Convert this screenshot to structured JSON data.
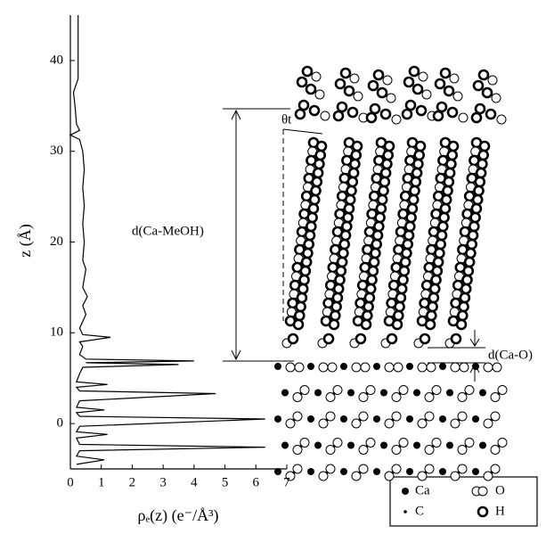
{
  "chart_data": {
    "type": "line",
    "x_label": "ρₑ(z) (e⁻/Å³)",
    "y_label": "z (Å)",
    "xlim": [
      0,
      7
    ],
    "xticks": [
      0,
      1,
      2,
      3,
      4,
      5,
      6,
      7
    ],
    "ylim": [
      -5,
      45
    ],
    "yticks": [
      0,
      10,
      20,
      30,
      40
    ],
    "color": "#000000",
    "z": [
      -4.5,
      -4,
      -3.6,
      -3,
      -2.6,
      -2.3,
      -1.6,
      -1.2,
      -0.9,
      -0.3,
      0.5,
      0.8,
      1.2,
      1.5,
      1.8,
      2.5,
      3.3,
      3.6,
      4.0,
      4.3,
      4.6,
      5.5,
      6.2,
      6.5,
      6.7,
      6.9,
      7.1,
      7.6,
      8.5,
      9.0,
      9.5,
      9.8,
      10.5,
      12,
      13,
      14,
      15,
      16,
      17,
      18,
      20,
      22,
      24,
      26,
      28,
      30,
      31.3,
      31.8,
      32.3,
      33,
      35,
      36.5,
      38,
      40,
      42,
      45
    ],
    "values": [
      0.2,
      1.1,
      0.2,
      0.3,
      6.3,
      0.3,
      0.2,
      1.2,
      0.2,
      0.3,
      6.3,
      0.3,
      0.2,
      1.1,
      0.2,
      0.3,
      4.7,
      0.3,
      0.2,
      1.2,
      0.2,
      0.3,
      0.4,
      3.5,
      0.5,
      4.0,
      0.5,
      0.3,
      0.4,
      0.3,
      1.3,
      0.4,
      0.3,
      0.5,
      0.4,
      0.55,
      0.4,
      0.45,
      0.5,
      0.4,
      0.45,
      0.4,
      0.45,
      0.4,
      0.45,
      0.4,
      0.3,
      0.0,
      0.3,
      0.2,
      0.15,
      0.1,
      0.25,
      0.25,
      0.25,
      0.25
    ],
    "annotations": {
      "theta": "θt",
      "d_ca_meoh": "d(Ca-MeOH)",
      "d_ca_o": "d(Ca-O)"
    },
    "legend": {
      "ca": "Ca",
      "o": "O",
      "c": "C",
      "h": "H"
    }
  }
}
